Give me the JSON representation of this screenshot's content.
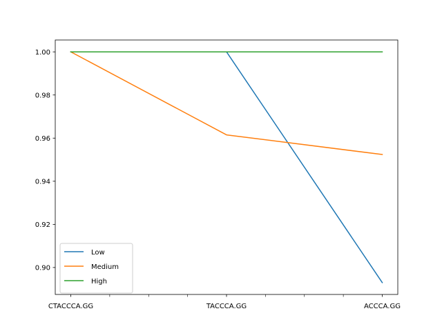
{
  "chart_data": {
    "type": "line",
    "title": "",
    "xlabel": "",
    "ylabel": "",
    "categories": [
      "CTACCCA.GG",
      "TACCCA.GG",
      "ACCCA.GG"
    ],
    "x_minor_ticks_per_gap": 3,
    "yticks": [
      "0.90",
      "0.92",
      "0.94",
      "0.96",
      "0.98",
      "1.00"
    ],
    "ylim": [
      0.8875,
      1.0055
    ],
    "grid": false,
    "legend_position": "lower-left",
    "series": [
      {
        "name": "Low",
        "color": "#1f77b4",
        "values": [
          1.0,
          1.0,
          0.893
        ]
      },
      {
        "name": "Medium",
        "color": "#ff7f0e",
        "values": [
          1.0,
          0.9615,
          0.9524
        ]
      },
      {
        "name": "High",
        "color": "#2ca02c",
        "values": [
          1.0,
          1.0,
          1.0
        ]
      }
    ]
  }
}
